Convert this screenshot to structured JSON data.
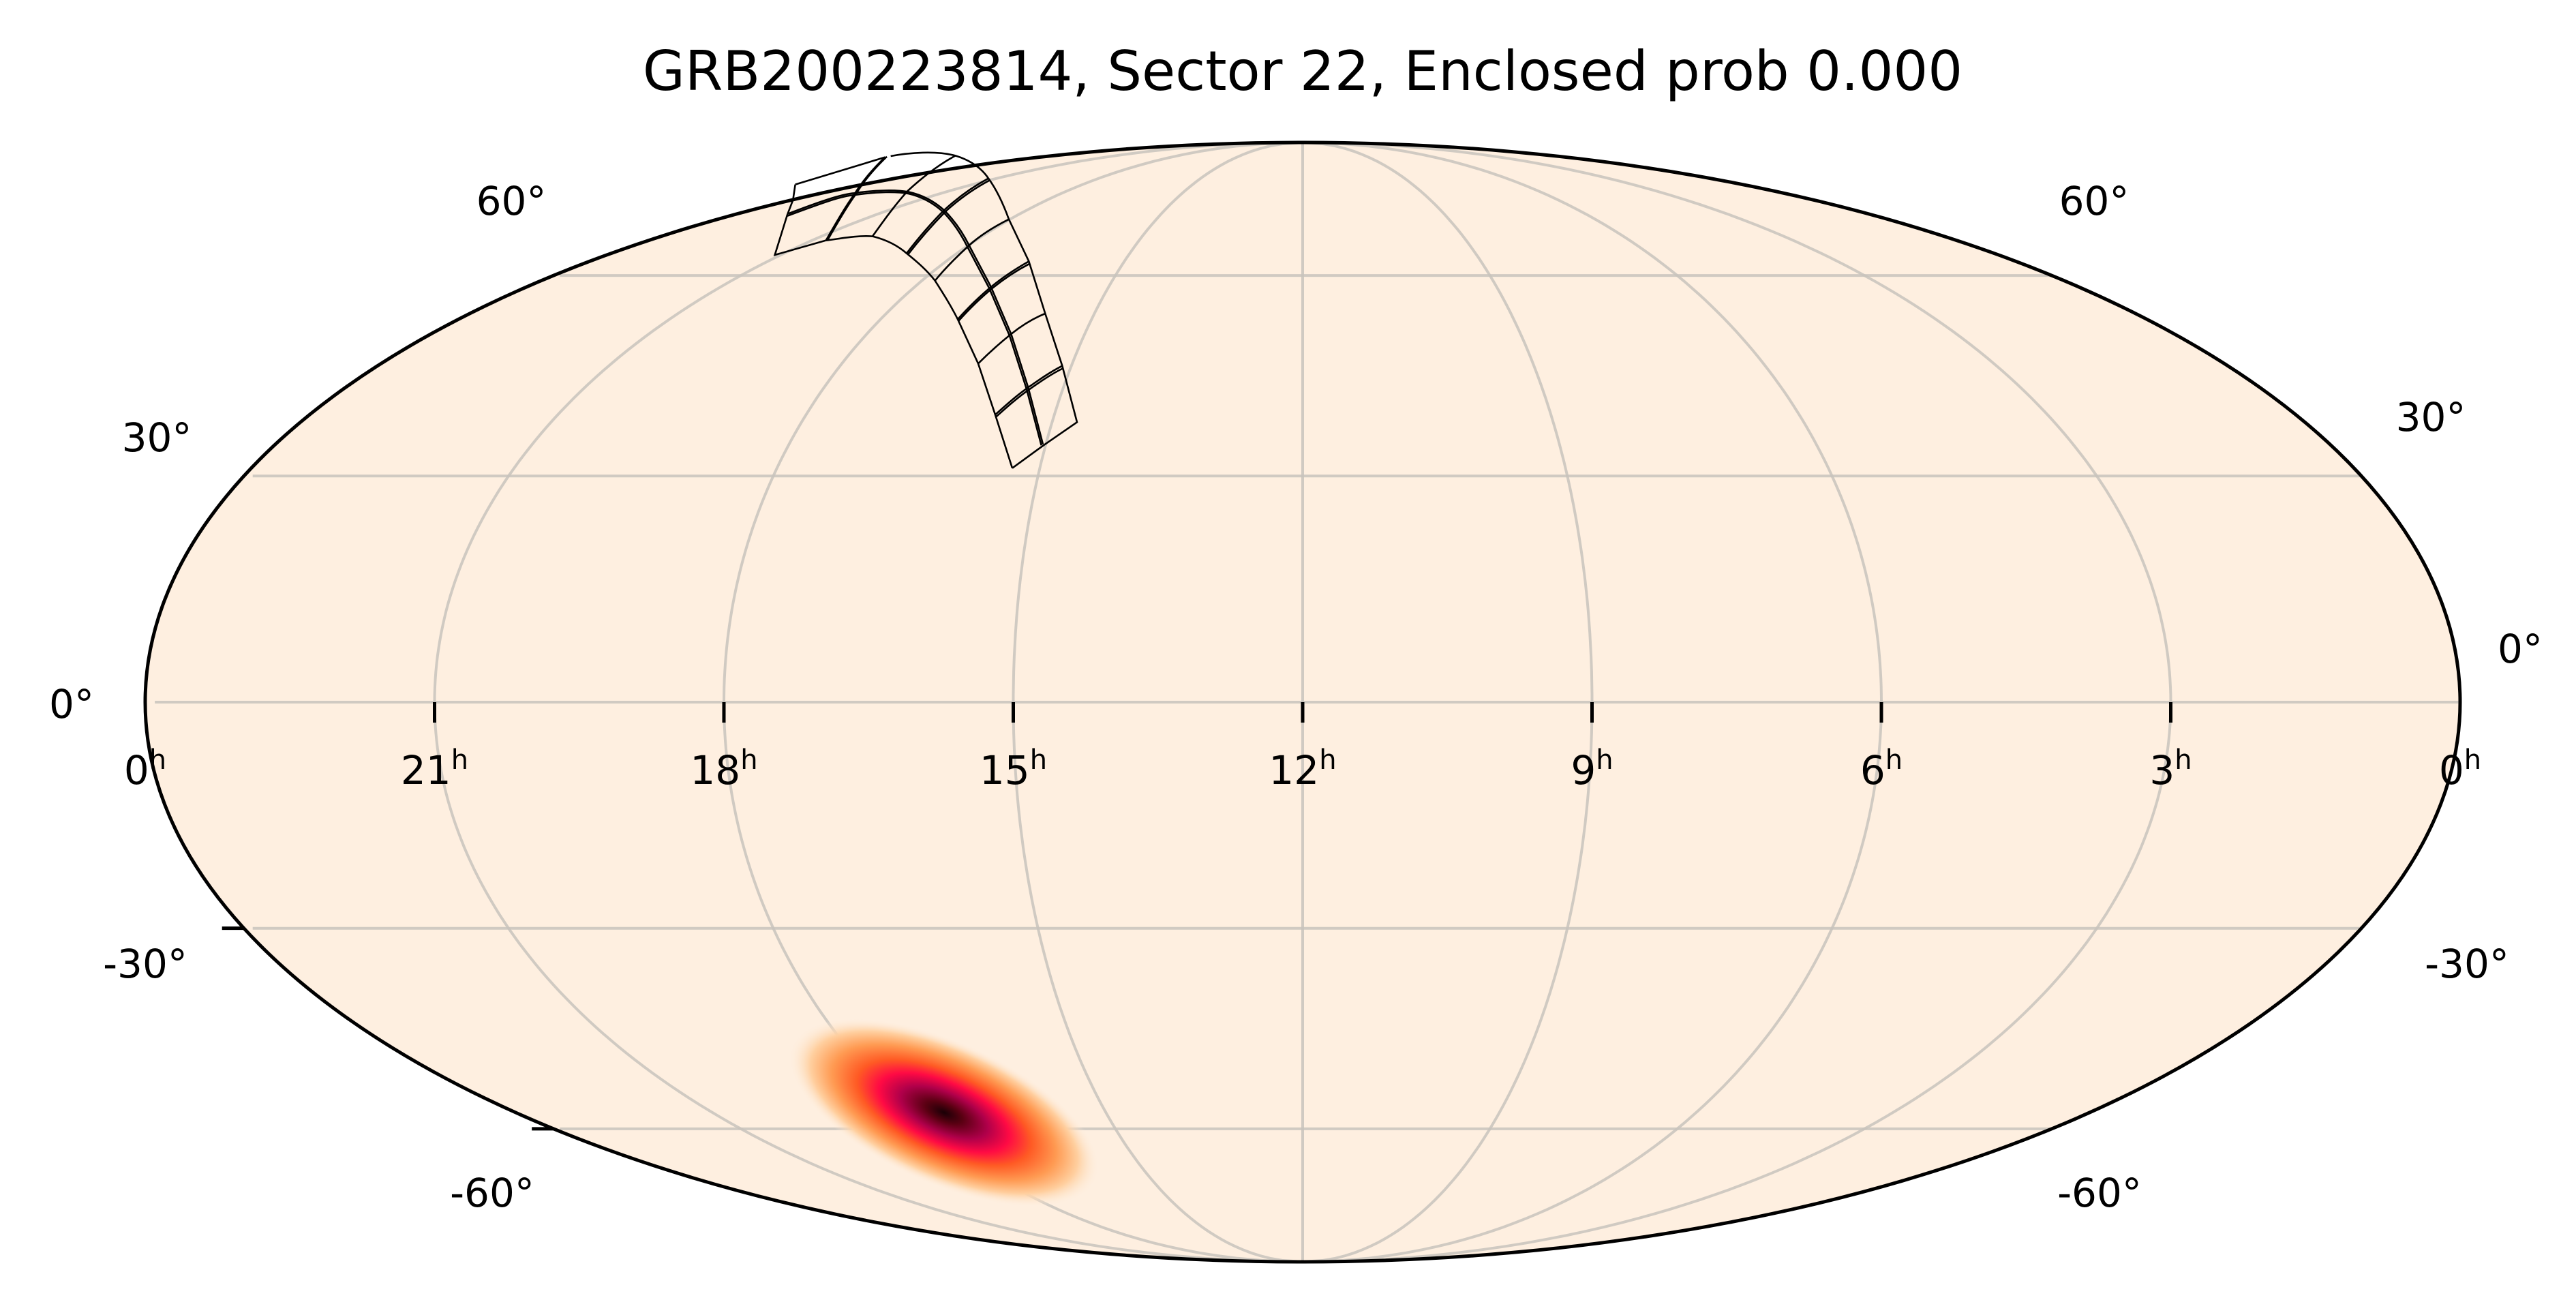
{
  "chart_data": {
    "type": "heatmap",
    "projection": "mollweide",
    "title": "GRB200223814, Sector 22, Enclosed prob 0.000",
    "background_color": "#feefe0",
    "frame_color": "#000000",
    "grid": true,
    "grid_color": "#c8c3bc",
    "ra_meridians_hours": [
      21,
      18,
      15,
      12,
      9,
      6,
      3
    ],
    "dec_parallels_deg": [
      -60,
      -30,
      0,
      30,
      60
    ],
    "ra_tick_labels": [
      "0",
      "21",
      "18",
      "15",
      "12",
      "9",
      "6",
      "3",
      "0"
    ],
    "ra_tick_unit": "h",
    "dec_tick_labels_left": [
      "60°",
      "30°",
      "0°",
      "-30°",
      "-60°"
    ],
    "dec_tick_labels_right": [
      "60°",
      "30°",
      "0°",
      "-30°",
      "-60°"
    ],
    "probability_blob": {
      "peak_ra_hours": 14.6,
      "peak_dec_deg": -52,
      "colormap": [
        "#000004",
        "#6b0033",
        "#c4004f",
        "#ff0040",
        "#ff5a22",
        "#ff9b4f",
        "#ffd0a0",
        "#feefe0"
      ]
    },
    "footprint": {
      "label_sector": "Sector 22",
      "cameras": 4,
      "ccds_per_camera": 4
    },
    "enclosed_prob": 0.0
  }
}
